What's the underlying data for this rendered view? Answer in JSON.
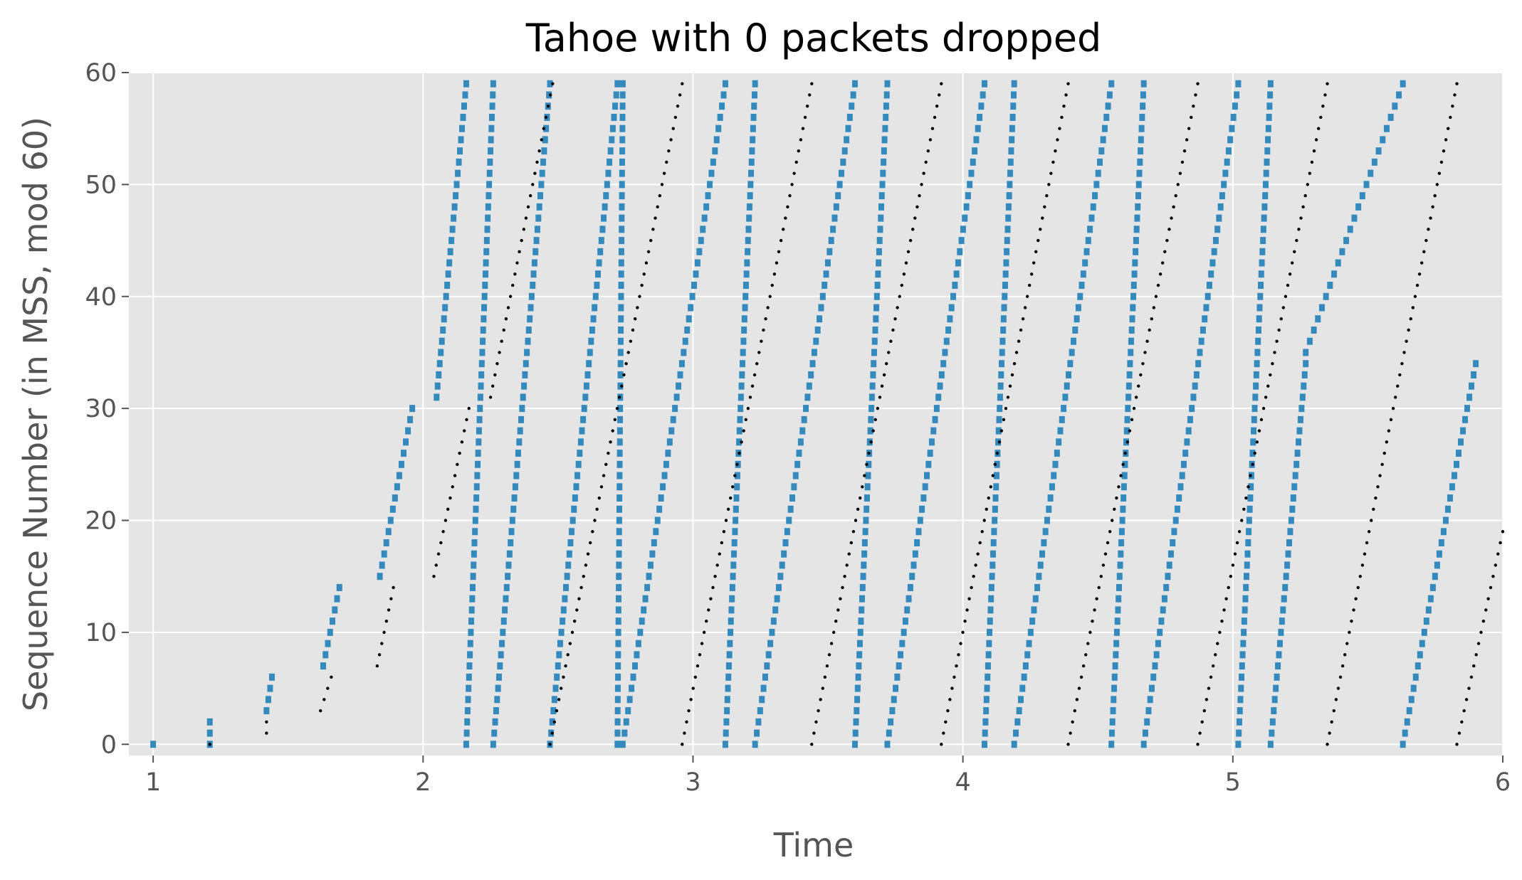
{
  "chart_data": {
    "type": "scatter",
    "title": "Tahoe with 0 packets dropped",
    "xlabel": "Time",
    "ylabel": "Sequence Number (in MSS, mod 60)",
    "xlim": [
      0.91,
      6.0
    ],
    "ylim": [
      -1,
      60
    ],
    "xticks": [
      "1",
      "2",
      "3",
      "4",
      "5",
      "6"
    ],
    "yticks": [
      "0",
      "10",
      "20",
      "30",
      "40",
      "50",
      "60"
    ],
    "grid": true,
    "legend": "none",
    "colors": {
      "background": "#e5e5e5",
      "grid": "#ffffff",
      "sent": "#348abd",
      "acked": "#000000"
    },
    "series": [
      {
        "marker": "square",
        "color": "#348abd",
        "segments": [
          {
            "x": [
              1.0,
              1.0
            ],
            "y": [
              0,
              0
            ]
          },
          {
            "x": [
              1.21,
              1.21
            ],
            "y": [
              0,
              2
            ]
          },
          {
            "x": [
              1.42,
              1.44
            ],
            "y": [
              3,
              6
            ]
          },
          {
            "x": [
              1.63,
              1.69
            ],
            "y": [
              7,
              14
            ]
          },
          {
            "x": [
              1.84,
              1.96
            ],
            "y": [
              15,
              30
            ]
          },
          {
            "x": [
              2.05,
              2.16
            ],
            "y": [
              31,
              59
            ]
          },
          {
            "x": [
              2.16,
              2.26
            ],
            "y": [
              0,
              59
            ]
          },
          {
            "x": [
              2.26,
              2.47
            ],
            "y": [
              0,
              59
            ]
          },
          {
            "x": [
              2.47,
              2.72
            ],
            "y": [
              0,
              59
            ]
          },
          {
            "x": [
              2.72,
              2.74
            ],
            "y": [
              0,
              59
            ]
          },
          {
            "x": [
              2.74,
              3.12
            ],
            "y": [
              0,
              59
            ]
          },
          {
            "x": [
              3.12,
              3.23
            ],
            "y": [
              0,
              59
            ]
          },
          {
            "x": [
              3.23,
              3.6
            ],
            "y": [
              0,
              59
            ]
          },
          {
            "x": [
              3.6,
              3.72
            ],
            "y": [
              0,
              59
            ]
          },
          {
            "x": [
              3.72,
              4.08
            ],
            "y": [
              0,
              59
            ]
          },
          {
            "x": [
              4.08,
              4.19
            ],
            "y": [
              0,
              59
            ]
          },
          {
            "x": [
              4.19,
              4.55
            ],
            "y": [
              0,
              59
            ]
          },
          {
            "x": [
              4.55,
              4.67
            ],
            "y": [
              0,
              59
            ]
          },
          {
            "x": [
              4.67,
              5.02
            ],
            "y": [
              0,
              59
            ]
          },
          {
            "x": [
              5.02,
              5.14
            ],
            "y": [
              0,
              59
            ]
          },
          {
            "x": [
              5.14,
              5.27
            ],
            "y": [
              0,
              34
            ]
          },
          {
            "x": [
              5.27,
              5.63
            ],
            "y": [
              35,
              59
            ]
          },
          {
            "x": [
              5.63,
              5.9
            ],
            "y": [
              0,
              34
            ]
          }
        ]
      },
      {
        "marker": "dot",
        "color": "#000000",
        "segments": [
          {
            "x": [
              1.21,
              1.21
            ],
            "y": [
              0,
              0
            ]
          },
          {
            "x": [
              1.42,
              1.42
            ],
            "y": [
              1,
              2
            ]
          },
          {
            "x": [
              1.62,
              1.66
            ],
            "y": [
              3,
              6
            ]
          },
          {
            "x": [
              1.83,
              1.89
            ],
            "y": [
              7,
              14
            ]
          },
          {
            "x": [
              2.04,
              2.17
            ],
            "y": [
              15,
              30
            ]
          },
          {
            "x": [
              2.25,
              2.48
            ],
            "y": [
              31,
              59
            ]
          },
          {
            "x": [
              2.47,
              2.96
            ],
            "y": [
              0,
              59
            ]
          },
          {
            "x": [
              2.96,
              3.44
            ],
            "y": [
              0,
              59
            ]
          },
          {
            "x": [
              3.44,
              3.92
            ],
            "y": [
              0,
              59
            ]
          },
          {
            "x": [
              3.92,
              4.39
            ],
            "y": [
              0,
              59
            ]
          },
          {
            "x": [
              4.39,
              4.87
            ],
            "y": [
              0,
              59
            ]
          },
          {
            "x": [
              4.87,
              5.35
            ],
            "y": [
              0,
              59
            ]
          },
          {
            "x": [
              5.35,
              5.83
            ],
            "y": [
              0,
              59
            ]
          },
          {
            "x": [
              5.83,
              6.0
            ],
            "y": [
              0,
              19
            ]
          }
        ]
      }
    ]
  }
}
